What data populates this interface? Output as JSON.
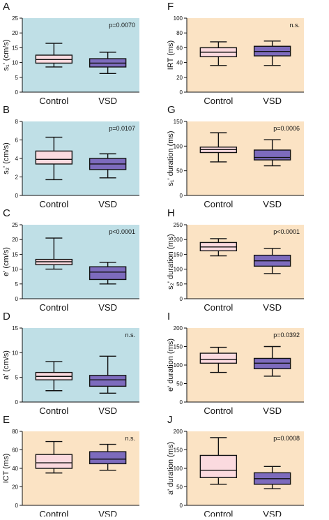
{
  "colors": {
    "blue_bg": "#bfdfe6",
    "orange_bg": "#fbe3c4",
    "control_box": "#fbdadf",
    "vsd_box": "#7d6bbd",
    "line": "#111111"
  },
  "chart_data": [
    {
      "panel": "A",
      "type": "box",
      "ylabel": "s₁' (cm/s)",
      "ylim": [
        0,
        25
      ],
      "yticks": [
        0,
        5,
        10,
        15,
        20,
        25
      ],
      "categories": [
        "Control",
        "VSD"
      ],
      "pvalue": "p=0.0070",
      "background": "blue",
      "boxes": [
        {
          "name": "Control",
          "min": 8.5,
          "q1": 9.8,
          "median": 11.0,
          "q3": 12.5,
          "max": 16.5
        },
        {
          "name": "VSD",
          "min": 6.3,
          "q1": 8.5,
          "median": 9.8,
          "q3": 11.3,
          "max": 13.5
        }
      ]
    },
    {
      "panel": "B",
      "type": "box",
      "ylabel": "s₂' (cm/s)",
      "ylim": [
        0,
        8
      ],
      "yticks": [
        0,
        2,
        4,
        6,
        8
      ],
      "categories": [
        "Control",
        "VSD"
      ],
      "pvalue": "p=0.0107",
      "background": "blue",
      "boxes": [
        {
          "name": "Control",
          "min": 1.7,
          "q1": 3.4,
          "median": 3.9,
          "q3": 4.8,
          "max": 6.3
        },
        {
          "name": "VSD",
          "min": 1.9,
          "q1": 2.8,
          "median": 3.4,
          "q3": 4.0,
          "max": 4.5
        }
      ]
    },
    {
      "panel": "C",
      "type": "box",
      "ylabel": "e' (cm/s)",
      "ylim": [
        0,
        25
      ],
      "yticks": [
        0,
        5,
        10,
        15,
        20,
        25
      ],
      "categories": [
        "Control",
        "VSD"
      ],
      "pvalue": "p<0.0001",
      "background": "blue",
      "boxes": [
        {
          "name": "Control",
          "min": 10.0,
          "q1": 11.5,
          "median": 12.5,
          "q3": 13.3,
          "max": 20.5
        },
        {
          "name": "VSD",
          "min": 5.0,
          "q1": 6.5,
          "median": 9.0,
          "q3": 10.8,
          "max": 12.3
        }
      ]
    },
    {
      "panel": "D",
      "type": "box",
      "ylabel": "a' (cm/s)",
      "ylim": [
        0,
        15
      ],
      "yticks": [
        0,
        5,
        10,
        15
      ],
      "categories": [
        "Control",
        "VSD"
      ],
      "pvalue": "n.s.",
      "background": "blue",
      "boxes": [
        {
          "name": "Control",
          "min": 2.3,
          "q1": 4.5,
          "median": 5.2,
          "q3": 6.0,
          "max": 8.2
        },
        {
          "name": "VSD",
          "min": 1.8,
          "q1": 3.2,
          "median": 4.5,
          "q3": 5.4,
          "max": 9.3
        }
      ]
    },
    {
      "panel": "E",
      "type": "box",
      "ylabel": "ICT (ms)",
      "ylim": [
        0,
        80
      ],
      "yticks": [
        0,
        20,
        40,
        60,
        80
      ],
      "categories": [
        "Control",
        "VSD"
      ],
      "pvalue": "n.s.",
      "background": "orange",
      "boxes": [
        {
          "name": "Control",
          "min": 35,
          "q1": 40,
          "median": 46,
          "q3": 55,
          "max": 69
        },
        {
          "name": "VSD",
          "min": 38,
          "q1": 45,
          "median": 50,
          "q3": 58,
          "max": 66
        }
      ]
    },
    {
      "panel": "F",
      "type": "box",
      "ylabel": "IRT (ms)",
      "ylim": [
        0,
        100
      ],
      "yticks": [
        0,
        20,
        40,
        60,
        80,
        100
      ],
      "categories": [
        "Control",
        "VSD"
      ],
      "pvalue": "n.s.",
      "background": "orange",
      "boxes": [
        {
          "name": "Control",
          "min": 36,
          "q1": 48,
          "median": 54,
          "q3": 60,
          "max": 68
        },
        {
          "name": "VSD",
          "min": 36,
          "q1": 49,
          "median": 55,
          "q3": 62,
          "max": 69
        }
      ]
    },
    {
      "panel": "G",
      "type": "box",
      "ylabel": "s₁' duration (ms)",
      "ylim": [
        0,
        150
      ],
      "yticks": [
        0,
        50,
        100,
        150
      ],
      "categories": [
        "Control",
        "VSD"
      ],
      "pvalue": "p=0.0006",
      "background": "orange",
      "boxes": [
        {
          "name": "Control",
          "min": 68,
          "q1": 87,
          "median": 93,
          "q3": 98,
          "max": 127
        },
        {
          "name": "VSD",
          "min": 60,
          "q1": 72,
          "median": 77,
          "q3": 92,
          "max": 113
        }
      ]
    },
    {
      "panel": "H",
      "type": "box",
      "ylabel": "s₂' duration (ms)",
      "ylim": [
        0,
        250
      ],
      "yticks": [
        0,
        50,
        100,
        150,
        200,
        250
      ],
      "categories": [
        "Control",
        "VSD"
      ],
      "pvalue": "p<0.0001",
      "background": "orange",
      "boxes": [
        {
          "name": "Control",
          "min": 145,
          "q1": 162,
          "median": 175,
          "q3": 190,
          "max": 203
        },
        {
          "name": "VSD",
          "min": 85,
          "q1": 110,
          "median": 128,
          "q3": 147,
          "max": 170
        }
      ]
    },
    {
      "panel": "I",
      "type": "box",
      "ylabel": "e' duration (ms)",
      "ylim": [
        0,
        200
      ],
      "yticks": [
        0,
        50,
        100,
        150,
        200
      ],
      "categories": [
        "Control",
        "VSD"
      ],
      "pvalue": "p=0.0392",
      "background": "orange",
      "boxes": [
        {
          "name": "Control",
          "min": 80,
          "q1": 105,
          "median": 115,
          "q3": 132,
          "max": 148
        },
        {
          "name": "VSD",
          "min": 70,
          "q1": 90,
          "median": 105,
          "q3": 118,
          "max": 150
        }
      ]
    },
    {
      "panel": "J",
      "type": "box",
      "ylabel": "a' duration (ms)",
      "ylim": [
        0,
        200
      ],
      "yticks": [
        0,
        50,
        100,
        150,
        200
      ],
      "categories": [
        "Control",
        "VSD"
      ],
      "pvalue": "p=0.0008",
      "background": "orange",
      "boxes": [
        {
          "name": "Control",
          "min": 57,
          "q1": 75,
          "median": 95,
          "q3": 135,
          "max": 183
        },
        {
          "name": "VSD",
          "min": 45,
          "q1": 57,
          "median": 72,
          "q3": 88,
          "max": 105
        }
      ]
    }
  ]
}
